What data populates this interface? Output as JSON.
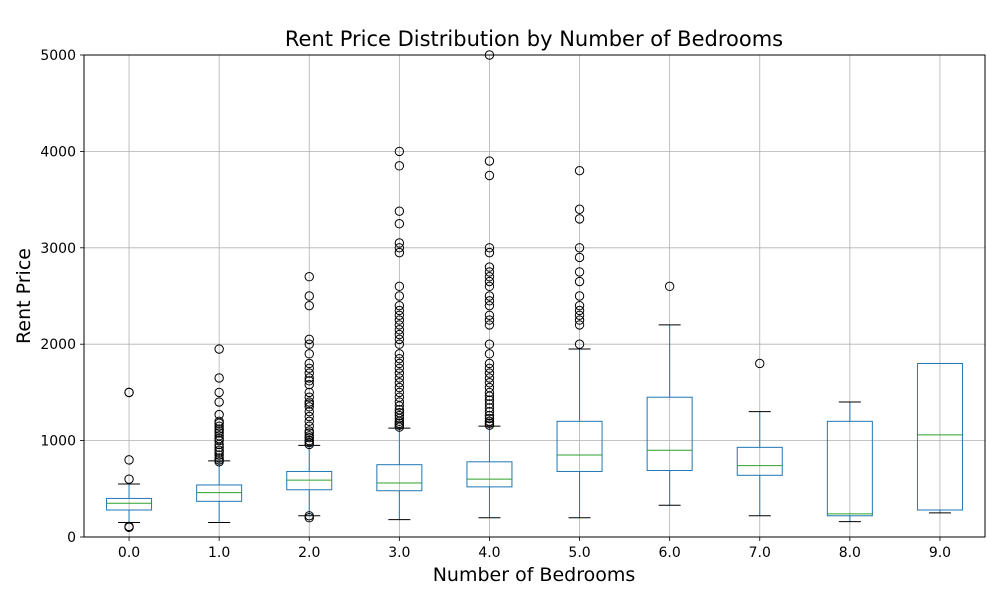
{
  "chart_data": {
    "type": "boxplot",
    "title": "Rent Price Distribution by Number of Bedrooms",
    "xlabel": "Number of Bedrooms",
    "ylabel": "Rent Price",
    "ylim": [
      0,
      5000
    ],
    "yticks": [
      0,
      1000,
      2000,
      3000,
      4000,
      5000
    ],
    "grid": true,
    "colors": {
      "box": "#1f77b4",
      "median": "#2ca02c",
      "whisker": "#1f77b4",
      "cap": "#000000",
      "flier": "#000000",
      "grid": "#b0b0b0"
    },
    "categories": [
      "0.0",
      "1.0",
      "2.0",
      "3.0",
      "4.0",
      "5.0",
      "6.0",
      "7.0",
      "8.0",
      "9.0"
    ],
    "boxes": [
      {
        "category": "0.0",
        "whislo": 150,
        "q1": 280,
        "med": 350,
        "q3": 400,
        "whishi": 550,
        "fliers": [
          100,
          110,
          600,
          800,
          1500,
          1500
        ]
      },
      {
        "category": "1.0",
        "whislo": 150,
        "q1": 370,
        "med": 460,
        "q3": 540,
        "whishi": 790,
        "fliers": [
          780,
          800,
          820,
          850,
          880,
          900,
          930,
          960,
          1000,
          1020,
          1050,
          1080,
          1100,
          1120,
          1150,
          1180,
          1200,
          1270,
          1400,
          1500,
          1650,
          1950
        ]
      },
      {
        "category": "2.0",
        "whislo": 220,
        "q1": 490,
        "med": 590,
        "q3": 680,
        "whishi": 950,
        "fliers": [
          200,
          220,
          960,
          980,
          1000,
          1030,
          1050,
          1080,
          1100,
          1150,
          1200,
          1250,
          1300,
          1350,
          1380,
          1400,
          1450,
          1500,
          1580,
          1620,
          1650,
          1700,
          1750,
          1800,
          1900,
          2000,
          2050,
          2400,
          2500,
          2700
        ]
      },
      {
        "category": "3.0",
        "whislo": 180,
        "q1": 480,
        "med": 560,
        "q3": 750,
        "whishi": 1130,
        "fliers": [
          1140,
          1160,
          1180,
          1200,
          1230,
          1260,
          1290,
          1320,
          1360,
          1400,
          1450,
          1500,
          1550,
          1600,
          1650,
          1700,
          1750,
          1800,
          1850,
          1900,
          2000,
          2050,
          2100,
          2150,
          2200,
          2250,
          2300,
          2350,
          2400,
          2500,
          2600,
          2950,
          3000,
          3050,
          3250,
          3380,
          3850,
          4000
        ]
      },
      {
        "category": "4.0",
        "whislo": 200,
        "q1": 520,
        "med": 600,
        "q3": 780,
        "whishi": 1150,
        "fliers": [
          1160,
          1180,
          1200,
          1230,
          1260,
          1300,
          1340,
          1380,
          1420,
          1460,
          1500,
          1550,
          1600,
          1650,
          1700,
          1750,
          1800,
          1900,
          2000,
          2200,
          2250,
          2300,
          2400,
          2450,
          2500,
          2600,
          2650,
          2700,
          2750,
          2800,
          2950,
          3000,
          3750,
          3900,
          5000
        ]
      },
      {
        "category": "5.0",
        "whislo": 200,
        "q1": 680,
        "med": 850,
        "q3": 1200,
        "whishi": 1950,
        "fliers": [
          2000,
          2200,
          2250,
          2300,
          2350,
          2400,
          2500,
          2650,
          2750,
          2900,
          3000,
          3300,
          3400,
          3800
        ]
      },
      {
        "category": "6.0",
        "whislo": 330,
        "q1": 690,
        "med": 900,
        "q3": 1450,
        "whishi": 2200,
        "fliers": [
          2600
        ]
      },
      {
        "category": "7.0",
        "whislo": 220,
        "q1": 640,
        "med": 740,
        "q3": 930,
        "whishi": 1300,
        "fliers": [
          1800
        ]
      },
      {
        "category": "8.0",
        "whislo": 160,
        "q1": 220,
        "med": 240,
        "q3": 1200,
        "whishi": 1400,
        "fliers": []
      },
      {
        "category": "9.0",
        "whislo": 250,
        "q1": 280,
        "med": 1060,
        "q3": 1800,
        "whishi": 1800,
        "fliers": []
      }
    ]
  }
}
